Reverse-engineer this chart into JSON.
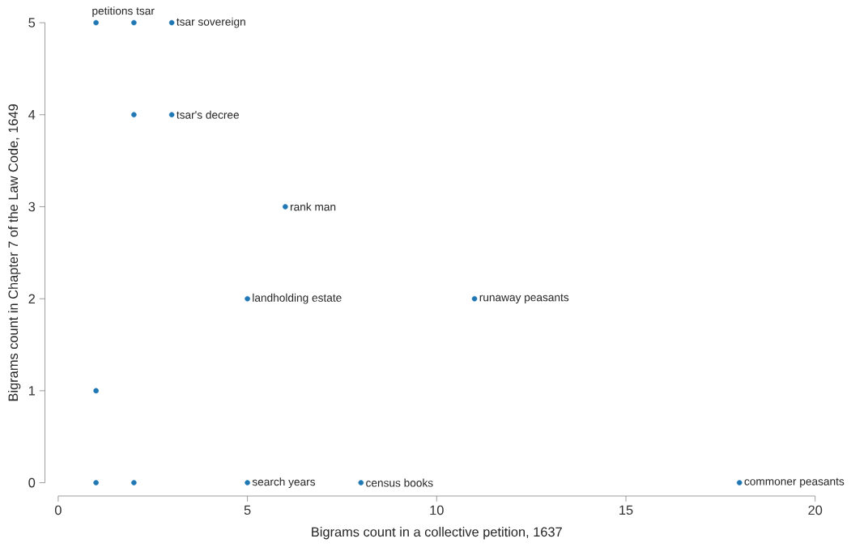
{
  "chart_data": {
    "type": "scatter",
    "xlabel": "Bigrams count in a collective petition, 1637",
    "ylabel": "Bigrams count in Chapter 7 of the Law Code, 1649",
    "x": [
      1,
      2,
      3,
      2,
      3,
      6,
      5,
      11,
      1,
      1,
      2,
      5,
      8,
      18
    ],
    "values": [
      5,
      5,
      5,
      4,
      4,
      3,
      2,
      2,
      1,
      0,
      0,
      0,
      0,
      0
    ],
    "color": "#1f77b4",
    "marker": "circle",
    "grid": false,
    "xlim": [
      0,
      20
    ],
    "ylim": [
      0,
      5
    ],
    "xticks": [
      0,
      5,
      10,
      15,
      20
    ],
    "yticks": [
      0,
      1,
      2,
      3,
      4,
      5
    ],
    "annotations": [
      {
        "text": "petitions tsar",
        "x": 1,
        "y": 5
      },
      {
        "text": "tsar sovereign",
        "x": 3,
        "y": 5
      },
      {
        "text": "tsar's decree",
        "x": 3,
        "y": 4
      },
      {
        "text": "rank man",
        "x": 6,
        "y": 3
      },
      {
        "text": "landholding estate",
        "x": 5,
        "y": 2
      },
      {
        "text": "runaway peasants",
        "x": 11,
        "y": 2
      },
      {
        "text": "search years",
        "x": 5,
        "y": 0
      },
      {
        "text": "census books",
        "x": 8,
        "y": 0
      },
      {
        "text": "commoner peasants",
        "x": 18,
        "y": 0
      }
    ]
  }
}
